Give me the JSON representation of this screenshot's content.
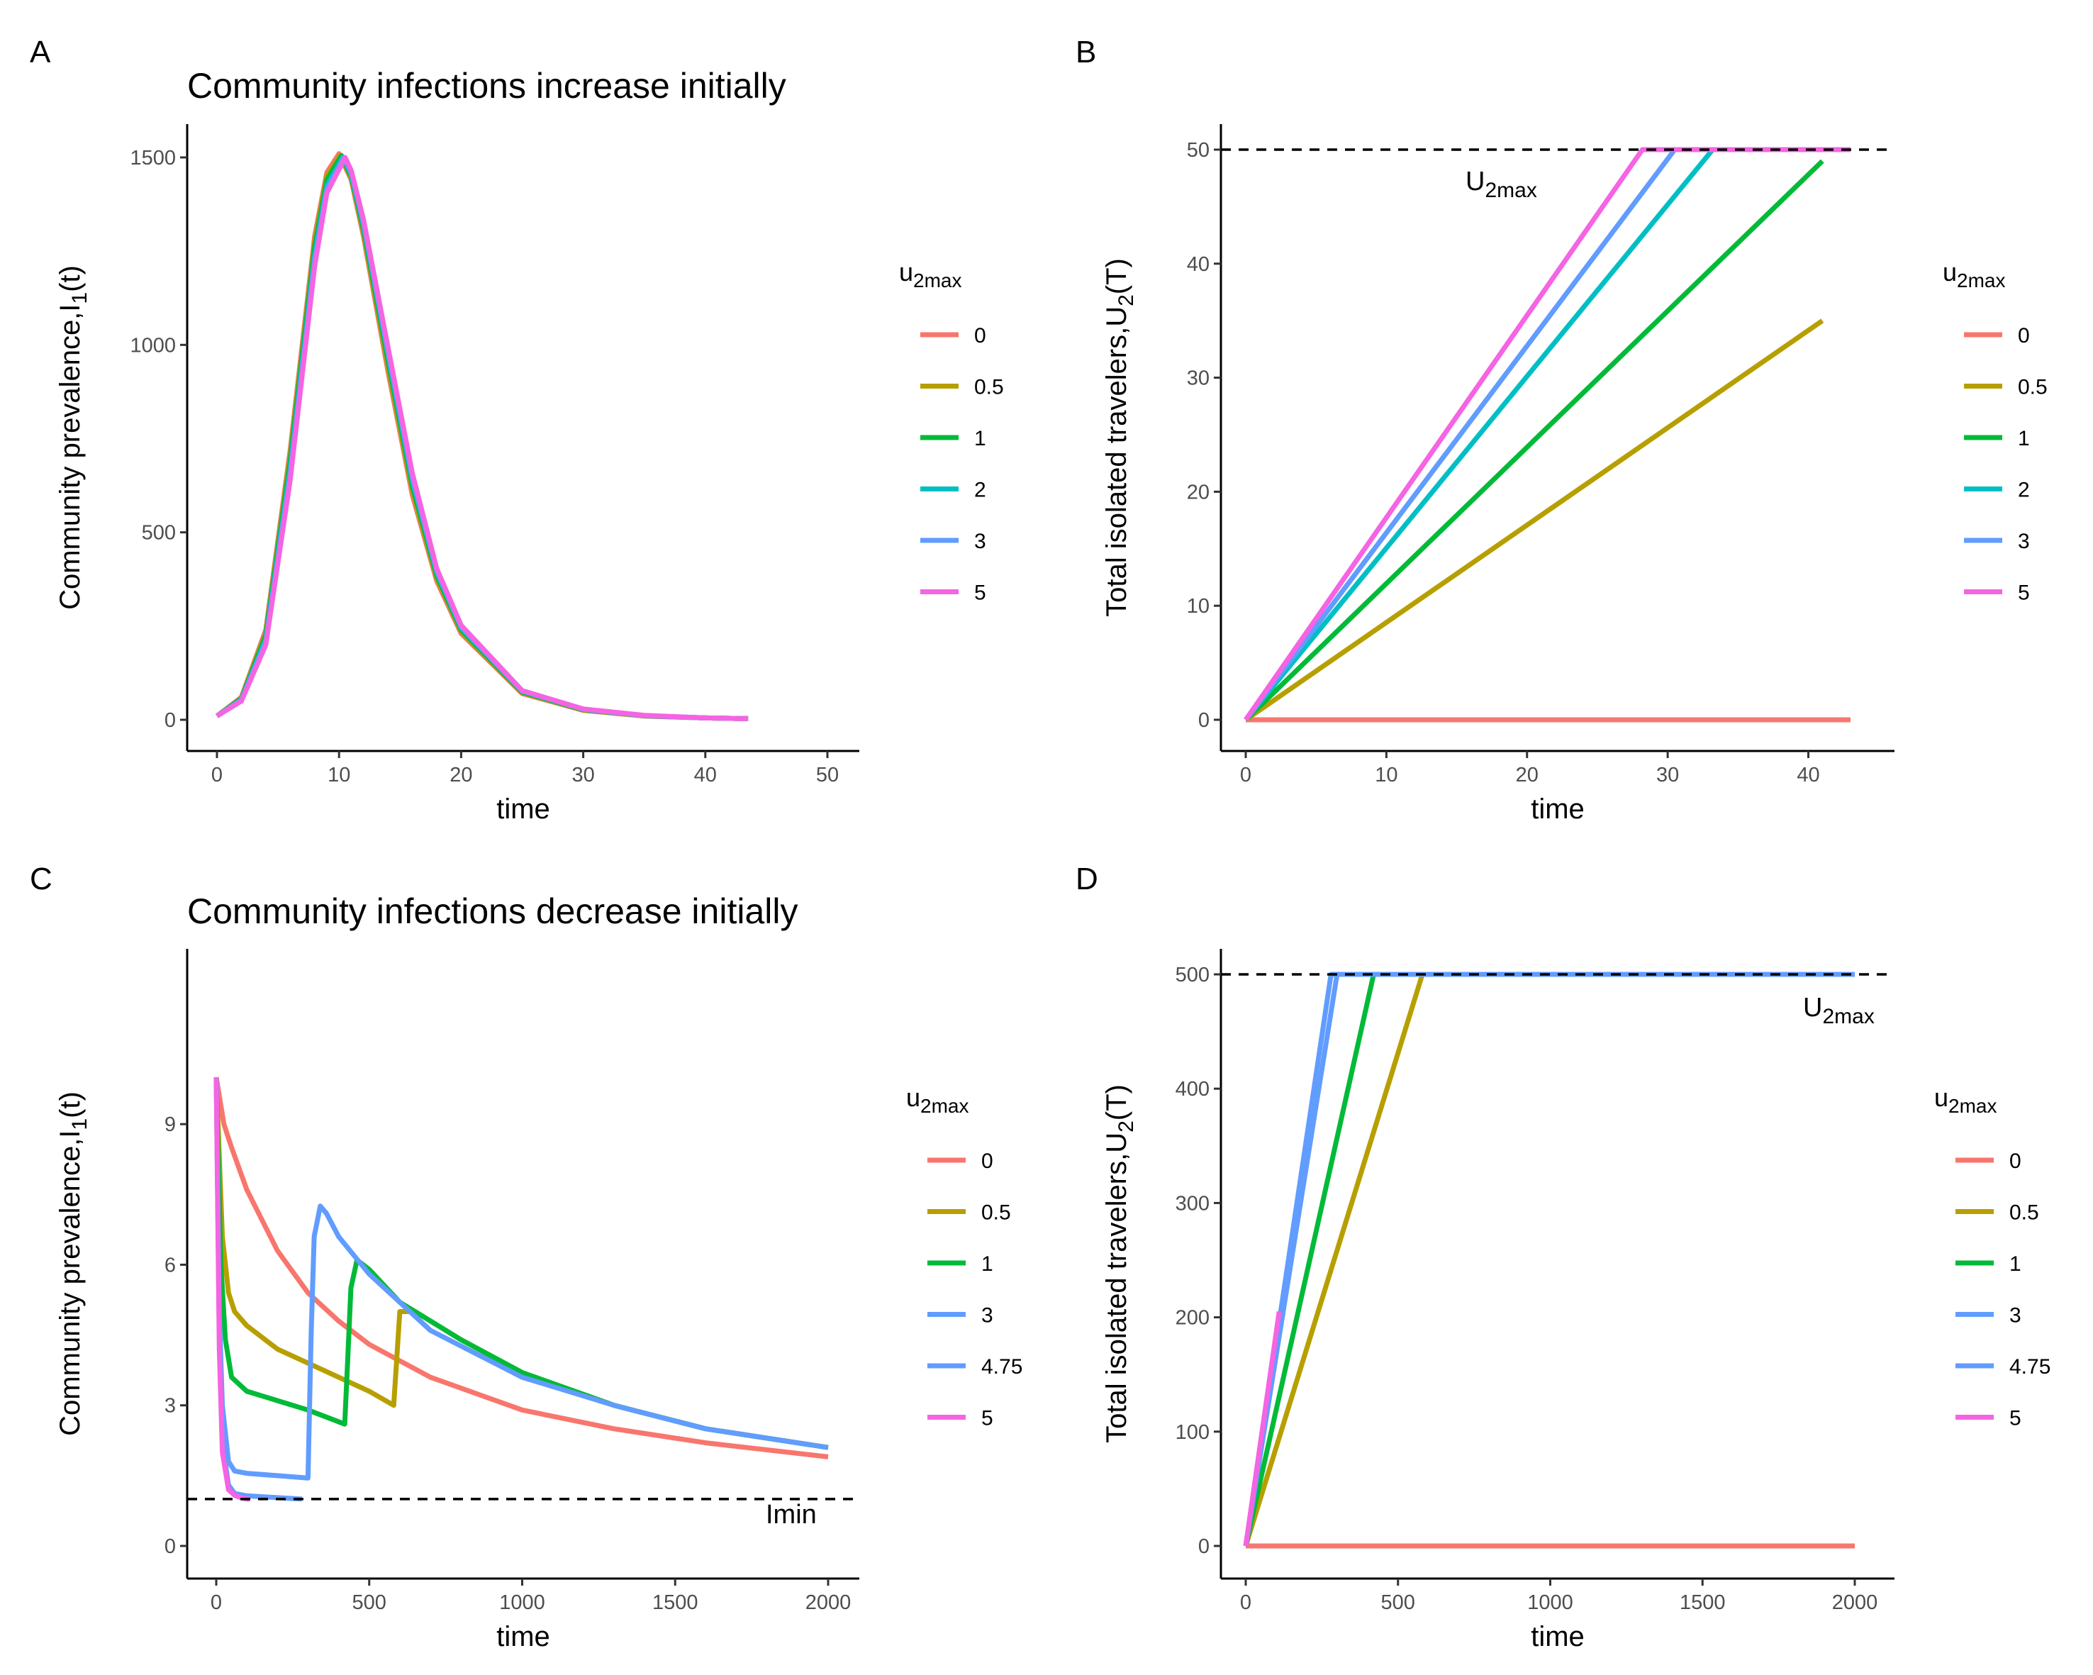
{
  "colors": {
    "0": "#F8766D",
    "0.5": "#B79F00",
    "1": "#00BA38",
    "2": "#00BFC4",
    "3": "#619CFF",
    "4.75": "#619CFF",
    "5": "#F564E3"
  },
  "chart_data": [
    {
      "panel": "A",
      "type": "line",
      "title": "Community infections increase initially",
      "xlabel": "time",
      "ylabel": "Community prevalence,I",
      "ylabel_sub": "1",
      "ylabel_tail": "(t)",
      "xlim": [
        0,
        50
      ],
      "ylim": [
        0,
        1500
      ],
      "xticks": [
        "0",
        "10",
        "20",
        "30",
        "40",
        "50"
      ],
      "yticks": [
        "0",
        "500",
        "1000",
        "1500"
      ],
      "legend_title": "u",
      "legend_title_sub": "2max",
      "legend": [
        "0",
        "0.5",
        "1",
        "2",
        "3",
        "5"
      ],
      "series": [
        {
          "name": "0",
          "x": [
            0,
            2,
            4,
            6,
            8,
            9,
            10,
            11,
            12,
            14,
            16,
            18,
            20,
            25,
            30,
            35,
            40,
            43.5
          ],
          "y": [
            10,
            60,
            240,
            720,
            1290,
            1460,
            1510,
            1440,
            1290,
            930,
            600,
            370,
            230,
            70,
            25,
            10,
            5,
            3
          ]
        },
        {
          "name": "0.5",
          "x": [
            0,
            2,
            4,
            6,
            8,
            9,
            10.1,
            11,
            12,
            14,
            16,
            18,
            20,
            25,
            30,
            35,
            40,
            43.5
          ],
          "y": [
            10,
            58,
            232,
            705,
            1275,
            1450,
            1505,
            1445,
            1300,
            945,
            612,
            378,
            235,
            72,
            26,
            10,
            5,
            3
          ]
        },
        {
          "name": "1",
          "x": [
            0,
            2,
            4,
            6,
            8,
            9,
            10.2,
            11,
            12,
            14,
            16,
            18,
            20,
            25,
            30,
            35,
            40,
            43.5
          ],
          "y": [
            10,
            56,
            225,
            690,
            1260,
            1440,
            1505,
            1450,
            1310,
            960,
            625,
            385,
            240,
            74,
            27,
            11,
            5,
            3
          ]
        },
        {
          "name": "2",
          "x": [
            0,
            2,
            4,
            6,
            8,
            9,
            10.3,
            11,
            12,
            14,
            16,
            18,
            20,
            25,
            30,
            35,
            40,
            43.5
          ],
          "y": [
            10,
            54,
            215,
            670,
            1240,
            1425,
            1500,
            1455,
            1320,
            975,
            638,
            393,
            245,
            76,
            28,
            11,
            5,
            3
          ]
        },
        {
          "name": "3",
          "x": [
            0,
            2,
            4,
            6,
            8,
            9,
            10.4,
            11,
            12,
            14,
            16,
            18,
            20,
            25,
            30,
            35,
            40,
            43.5
          ],
          "y": [
            10,
            52,
            208,
            655,
            1225,
            1415,
            1500,
            1460,
            1328,
            985,
            648,
            398,
            248,
            77,
            28,
            11,
            5,
            3
          ]
        },
        {
          "name": "5",
          "x": [
            0,
            2,
            4,
            6,
            8,
            9,
            10.5,
            11,
            12,
            14,
            16,
            18,
            20,
            25,
            30,
            35,
            40,
            43.5
          ],
          "y": [
            10,
            50,
            200,
            640,
            1210,
            1405,
            1500,
            1465,
            1335,
            995,
            658,
            403,
            252,
            78,
            29,
            12,
            5,
            3
          ]
        }
      ]
    },
    {
      "panel": "B",
      "type": "line",
      "xlabel": "time",
      "ylabel": "Total isolated travelers,U",
      "ylabel_sub": "2",
      "ylabel_tail": "(T)",
      "xlim": [
        0,
        43
      ],
      "ylim": [
        0,
        50
      ],
      "xticks": [
        "0",
        "10",
        "20",
        "30",
        "40"
      ],
      "yticks": [
        "0",
        "10",
        "20",
        "30",
        "40",
        "50"
      ],
      "hline": 50,
      "annotation": "U",
      "annotation_sub": "2max",
      "legend_title": "u",
      "legend_title_sub": "2max",
      "legend": [
        "0",
        "0.5",
        "1",
        "2",
        "3",
        "5"
      ],
      "series": [
        {
          "name": "0",
          "x": [
            0,
            43
          ],
          "y": [
            0,
            0
          ]
        },
        {
          "name": "0.5",
          "x": [
            0,
            41
          ],
          "y": [
            0,
            35
          ]
        },
        {
          "name": "1",
          "x": [
            0,
            41
          ],
          "y": [
            0,
            49
          ]
        },
        {
          "name": "2",
          "x": [
            0,
            33.2,
            43
          ],
          "y": [
            0,
            50,
            50
          ]
        },
        {
          "name": "3",
          "x": [
            0,
            30.5,
            43
          ],
          "y": [
            0,
            50,
            50
          ]
        },
        {
          "name": "5",
          "x": [
            0,
            28.2,
            43
          ],
          "y": [
            0,
            50,
            50
          ]
        }
      ]
    },
    {
      "panel": "C",
      "type": "line",
      "title": "Community infections decrease initially",
      "xlabel": "time",
      "ylabel": "Community prevalence,I",
      "ylabel_sub": "1",
      "ylabel_tail": "(t)",
      "xlim": [
        0,
        2000
      ],
      "ylim": [
        0,
        11
      ],
      "xticks": [
        "0",
        "500",
        "1000",
        "1500",
        "2000"
      ],
      "yticks": [
        "0",
        "3",
        "6",
        "9"
      ],
      "hline": 1,
      "annotation": "Imin",
      "legend_title": "u",
      "legend_title_sub": "2max",
      "legend": [
        "0",
        "0.5",
        "1",
        "3",
        "4.75",
        "5"
      ],
      "series": [
        {
          "name": "0",
          "x": [
            0,
            25,
            50,
            100,
            200,
            300,
            400,
            500,
            700,
            1000,
            1300,
            1600,
            2000
          ],
          "y": [
            10,
            9.0,
            8.5,
            7.6,
            6.3,
            5.4,
            4.8,
            4.3,
            3.6,
            2.9,
            2.5,
            2.2,
            1.9
          ]
        },
        {
          "name": "0.5",
          "x": [
            0,
            20,
            40,
            60,
            100,
            200,
            300,
            400,
            500,
            580,
            590,
            600,
            650,
            800,
            1000,
            1300,
            1600,
            2000
          ],
          "y": [
            10,
            6.6,
            5.4,
            5.0,
            4.7,
            4.2,
            3.9,
            3.6,
            3.3,
            3.0,
            4.0,
            5.0,
            5.0,
            4.4,
            3.7,
            3.0,
            2.5,
            2.1
          ]
        },
        {
          "name": "1",
          "x": [
            0,
            15,
            30,
            50,
            100,
            200,
            300,
            420,
            430,
            440,
            460,
            500,
            600,
            800,
            1000,
            1300,
            1600,
            2000
          ],
          "y": [
            10,
            6.0,
            4.4,
            3.6,
            3.3,
            3.1,
            2.9,
            2.6,
            4.0,
            5.5,
            6.1,
            5.9,
            5.2,
            4.4,
            3.7,
            3.0,
            2.5,
            2.1
          ]
        },
        {
          "name": "3",
          "x": [
            0,
            10,
            20,
            40,
            60,
            100,
            200,
            300,
            310,
            320,
            340,
            360,
            400,
            500,
            700,
            1000,
            1300,
            1600,
            2000
          ],
          "y": [
            10,
            5.0,
            3.0,
            1.8,
            1.6,
            1.55,
            1.5,
            1.45,
            4.5,
            6.6,
            7.25,
            7.1,
            6.6,
            5.8,
            4.6,
            3.6,
            3.0,
            2.5,
            2.1
          ]
        },
        {
          "name": "4.75",
          "x": [
            0,
            10,
            20,
            40,
            60,
            100,
            150,
            200,
            280
          ],
          "y": [
            10,
            4.5,
            2.2,
            1.3,
            1.12,
            1.07,
            1.05,
            1.03,
            1.0
          ]
        },
        {
          "name": "5",
          "x": [
            0,
            10,
            20,
            40,
            60,
            80,
            100,
            110
          ],
          "y": [
            10,
            4.2,
            2.0,
            1.2,
            1.08,
            1.03,
            1.0,
            1.0
          ]
        }
      ]
    },
    {
      "panel": "D",
      "type": "line",
      "xlabel": "time",
      "ylabel": "Total isolated travelers,U",
      "ylabel_sub": "2",
      "ylabel_tail": "(T)",
      "xlim": [
        0,
        2000
      ],
      "ylim": [
        0,
        500
      ],
      "xticks": [
        "0",
        "500",
        "1000",
        "1500",
        "2000"
      ],
      "yticks": [
        "0",
        "100",
        "200",
        "300",
        "400",
        "500"
      ],
      "hline": 500,
      "annotation": "U",
      "annotation_sub": "2max",
      "legend_title": "u",
      "legend_title_sub": "2max",
      "legend": [
        "0",
        "0.5",
        "1",
        "3",
        "4.75",
        "5"
      ],
      "series": [
        {
          "name": "0",
          "x": [
            0,
            2000
          ],
          "y": [
            0,
            0
          ]
        },
        {
          "name": "0.5",
          "x": [
            0,
            580,
            2000
          ],
          "y": [
            0,
            500,
            500
          ]
        },
        {
          "name": "1",
          "x": [
            0,
            420,
            2000
          ],
          "y": [
            0,
            500,
            500
          ]
        },
        {
          "name": "3",
          "x": [
            0,
            300,
            2000
          ],
          "y": [
            0,
            500,
            500
          ]
        },
        {
          "name": "4.75",
          "x": [
            0,
            280,
            2000
          ],
          "y": [
            0,
            500,
            500
          ]
        },
        {
          "name": "5",
          "x": [
            0,
            110
          ],
          "y": [
            0,
            205
          ]
        }
      ]
    }
  ]
}
